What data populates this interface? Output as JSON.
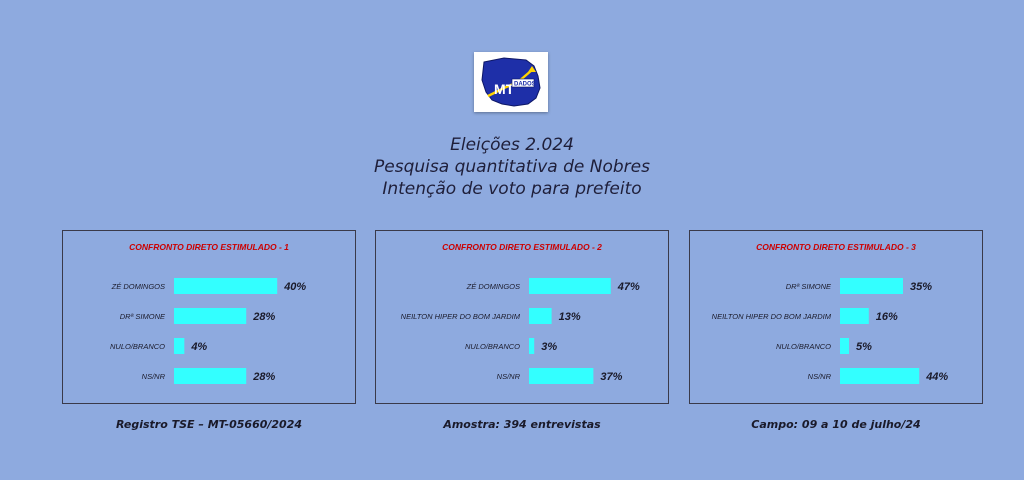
{
  "logo": {
    "text_main": "MT",
    "text_sub": "DADOS"
  },
  "header": {
    "line1": "Eleições 2.024",
    "line2": "Pesquisa quantitativa de Nobres",
    "line3": "Intenção de voto para prefeito"
  },
  "footer": {
    "left": "Registro TSE – MT-05660/2024",
    "center": "Amostra: 394 entrevistas",
    "right": "Campo: 09 a 10 de julho/24"
  },
  "colors": {
    "bar": "#33ffff",
    "title": "#cc0000",
    "border": "#3a3a4a"
  },
  "chart_data": [
    {
      "type": "bar",
      "orientation": "horizontal",
      "title": "CONFRONTO DIRETO ESTIMULADO - 1",
      "categories": [
        "ZÉ DOMINGOS",
        "DRª SIMONE",
        "NULO/BRANCO",
        "NS/NR"
      ],
      "values": [
        40,
        28,
        4,
        28
      ],
      "labels": [
        "40%",
        "28%",
        "4%",
        "28%"
      ],
      "unit": "%",
      "xlim": [
        0,
        50
      ],
      "grid": false
    },
    {
      "type": "bar",
      "orientation": "horizontal",
      "title": "CONFRONTO DIRETO ESTIMULADO - 2",
      "categories": [
        "ZÉ DOMINGOS",
        "NEILTON HIPER DO BOM JARDIM",
        "NULO/BRANCO",
        "NS/NR"
      ],
      "values": [
        47,
        13,
        3,
        37
      ],
      "labels": [
        "47%",
        "13%",
        "3%",
        "37%"
      ],
      "unit": "%",
      "xlim": [
        0,
        50
      ],
      "grid": false
    },
    {
      "type": "bar",
      "orientation": "horizontal",
      "title": "CONFRONTO DIRETO ESTIMULADO - 3",
      "categories": [
        "DRª SIMONE",
        "NEILTON HIPER DO BOM JARDIM",
        "NULO/BRANCO",
        "NS/NR"
      ],
      "values": [
        35,
        16,
        5,
        44
      ],
      "labels": [
        "35%",
        "16%",
        "5%",
        "44%"
      ],
      "unit": "%",
      "xlim": [
        0,
        50
      ],
      "grid": false
    }
  ]
}
